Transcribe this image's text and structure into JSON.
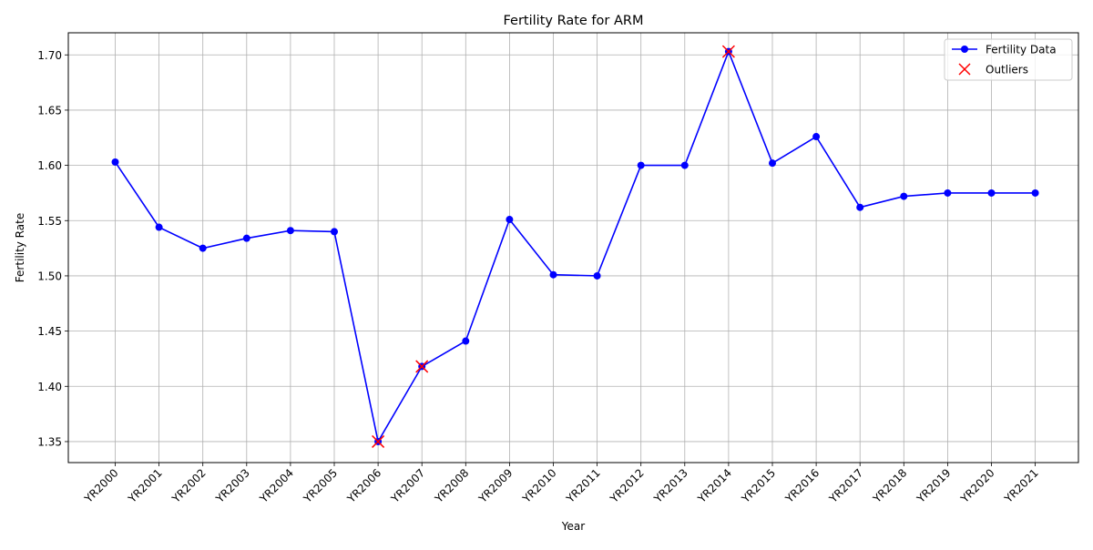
{
  "chart_data": {
    "type": "line",
    "title": "Fertility Rate for ARM",
    "xlabel": "Year",
    "ylabel": "Fertility Rate",
    "categories": [
      "YR2000",
      "YR2001",
      "YR2002",
      "YR2003",
      "YR2004",
      "YR2005",
      "YR2006",
      "YR2007",
      "YR2008",
      "YR2009",
      "YR2010",
      "YR2011",
      "YR2012",
      "YR2013",
      "YR2014",
      "YR2015",
      "YR2016",
      "YR2017",
      "YR2018",
      "YR2019",
      "YR2020",
      "YR2021"
    ],
    "series": [
      {
        "name": "Fertility Data",
        "color": "#0000ff",
        "values": [
          1.603,
          1.544,
          1.525,
          1.534,
          1.541,
          1.54,
          1.35,
          1.418,
          1.441,
          1.551,
          1.501,
          1.5,
          1.6,
          1.6,
          1.703,
          1.602,
          1.626,
          1.562,
          1.572,
          1.575,
          1.575,
          1.575
        ]
      }
    ],
    "outliers": {
      "name": "Outliers",
      "color": "#ff0000",
      "categories": [
        "YR2006",
        "YR2007",
        "YR2014"
      ],
      "values": [
        1.35,
        1.418,
        1.703
      ]
    },
    "ylim": [
      1.331,
      1.72
    ],
    "yticks": [
      "1.35",
      "1.40",
      "1.45",
      "1.50",
      "1.55",
      "1.60",
      "1.65",
      "1.70"
    ],
    "grid": true,
    "legend": "top-right"
  }
}
